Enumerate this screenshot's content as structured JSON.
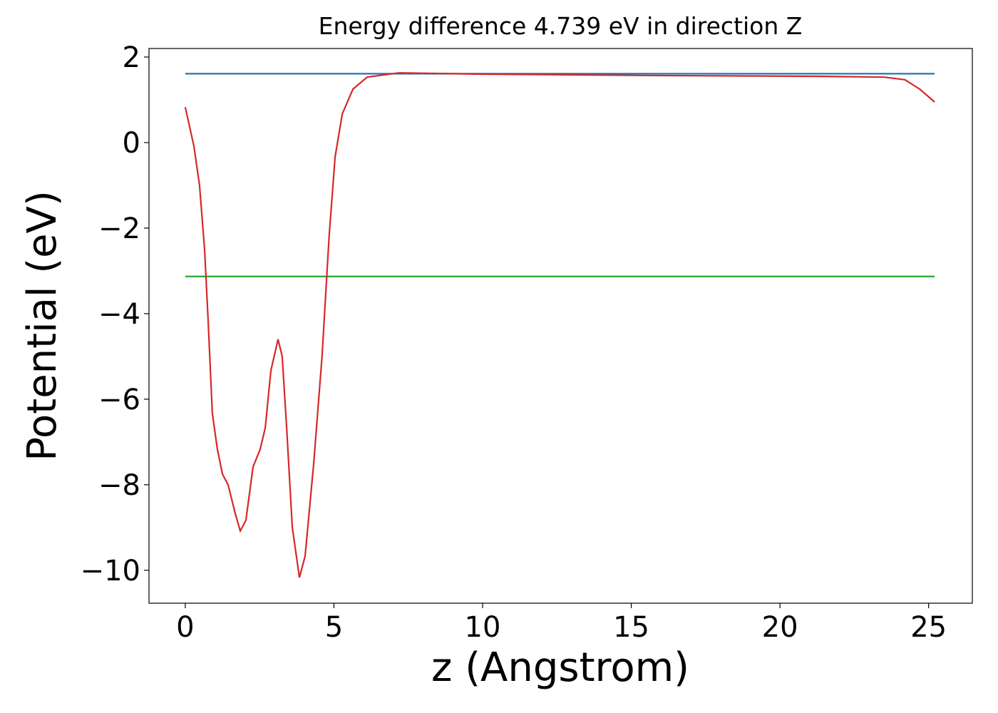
{
  "chart_data": {
    "type": "line",
    "title": "Energy difference 4.739 eV in direction Z",
    "x_label": "z (Angstrom)",
    "y_label": "Potential (eV)",
    "xlim": [
      -1.22,
      26.47
    ],
    "ylim": [
      -10.77,
      2.2
    ],
    "xticks": [
      0,
      5,
      10,
      15,
      20,
      25
    ],
    "yticks": [
      2,
      0,
      {
        "value": -2,
        "label": "−2"
      },
      {
        "value": -4,
        "label": "−4"
      },
      {
        "value": -6,
        "label": "−6"
      },
      {
        "value": -8,
        "label": "−8"
      },
      {
        "value": -10,
        "label": "−10"
      }
    ],
    "series": [
      {
        "color": "#1f77b4",
        "x": [
          0,
          25.2
        ],
        "values": [
          1.61,
          1.61
        ]
      },
      {
        "color": "#2ca02c",
        "x": [
          0,
          25.2
        ],
        "values": [
          -3.13,
          -3.13
        ]
      },
      {
        "color": "#d62728",
        "x": [
          0,
          0.29,
          0.48,
          0.65,
          0.77,
          0.91,
          1.08,
          1.25,
          1.44,
          1.68,
          1.85,
          2.04,
          2.28,
          2.52,
          2.69,
          2.88,
          3.12,
          3.26,
          3.41,
          3.6,
          3.84,
          4.03,
          4.32,
          4.6,
          4.84,
          5.04,
          5.28,
          5.64,
          6.12,
          7.19,
          10,
          15.35,
          21.3,
          23.5,
          24.2,
          24.7,
          25.2
        ],
        "values": [
          0.83,
          -0.08,
          -1.0,
          -2.5,
          -4.17,
          -6.33,
          -7.17,
          -7.75,
          -8.0,
          -8.67,
          -9.08,
          -8.83,
          -7.58,
          -7.17,
          -6.67,
          -5.33,
          -4.6,
          -5.0,
          -6.67,
          -9.0,
          -10.17,
          -9.67,
          -7.5,
          -5.0,
          -2.17,
          -0.33,
          0.67,
          1.25,
          1.53,
          1.63,
          1.6,
          1.57,
          1.55,
          1.53,
          1.47,
          1.25,
          0.95
        ]
      }
    ]
  }
}
